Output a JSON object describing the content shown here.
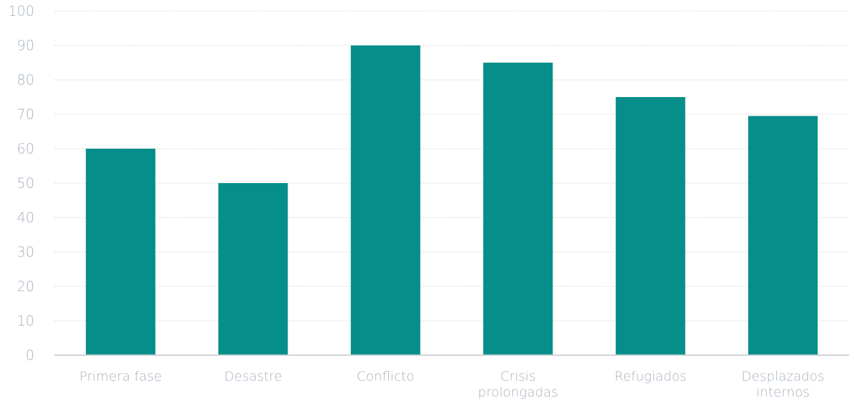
{
  "chart_data": {
    "type": "bar",
    "categories": [
      [
        "Primera fase"
      ],
      [
        "Desastre"
      ],
      [
        "Conflicto"
      ],
      [
        "Crisis",
        "prolongadas"
      ],
      [
        "Refugiados"
      ],
      [
        "Desplazados",
        "internos"
      ]
    ],
    "values": [
      60,
      50,
      90,
      85,
      75,
      69.5
    ],
    "ylim": [
      0,
      100
    ],
    "yticks": [
      "0",
      "10",
      "20",
      "30",
      "40",
      "50",
      "60",
      "70",
      "80",
      "90",
      "100"
    ],
    "grid": true,
    "legend": "none",
    "title": "",
    "xlabel": "",
    "ylabel": ""
  },
  "colors": {
    "bar": "#058e8a",
    "tick_text": "#a7b2bd",
    "grid": "#c6c9cc",
    "axis": "#cfd3d6"
  }
}
